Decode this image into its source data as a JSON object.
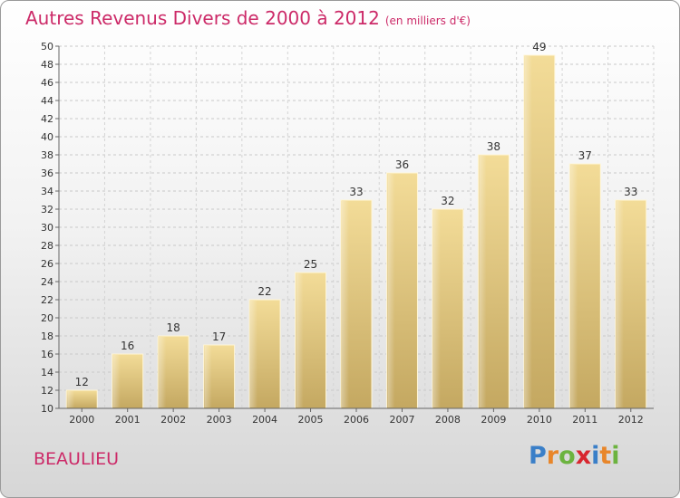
{
  "title": {
    "main": "Autres Revenus Divers de 2000 à 2012",
    "unit": "(en milliers d'€)"
  },
  "commune": "BEAULIEU",
  "logo": {
    "letters": [
      "P",
      "r",
      "o",
      "x",
      "i",
      "t",
      "i"
    ],
    "colors": [
      "#3a7fc8",
      "#e8862a",
      "#6cb33f",
      "#d8262f",
      "#3a7fc8",
      "#e8862a",
      "#6cb33f"
    ]
  },
  "chart_data": {
    "type": "bar",
    "categories": [
      "2000",
      "2001",
      "2002",
      "2003",
      "2004",
      "2005",
      "2006",
      "2007",
      "2008",
      "2009",
      "2010",
      "2011",
      "2012"
    ],
    "values": [
      12,
      16,
      18,
      17,
      22,
      25,
      33,
      36,
      32,
      38,
      49,
      37,
      33
    ],
    "ylim": [
      10,
      50
    ],
    "yticks": [
      10,
      12,
      14,
      16,
      18,
      20,
      22,
      24,
      26,
      28,
      30,
      32,
      34,
      36,
      38,
      40,
      42,
      44,
      46,
      48,
      50
    ],
    "grid": true,
    "bar_color": "#e3c983"
  }
}
